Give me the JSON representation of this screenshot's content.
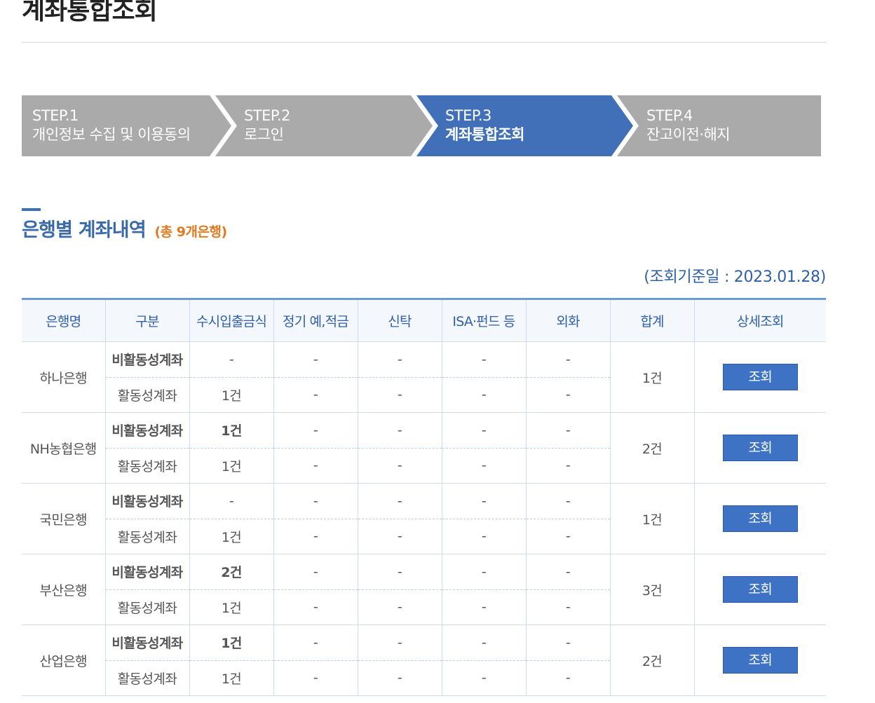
{
  "page": {
    "title": "계좌통합조회"
  },
  "steps": [
    {
      "num": "STEP.1",
      "name": "개인정보 수집 및 이용동의",
      "active": false
    },
    {
      "num": "STEP.2",
      "name": "로그인",
      "active": false
    },
    {
      "num": "STEP.3",
      "name": "계좌통합조회",
      "active": true
    },
    {
      "num": "STEP.4",
      "name": "잔고이전·해지",
      "active": false
    }
  ],
  "colors": {
    "step_inactive": "#aaaaaa",
    "step_active": "#4170b9",
    "accent": "#2e6bc7",
    "count_orange": "#e07b22"
  },
  "section": {
    "title": "은행별 계좌내역",
    "count": "(총 9개은행)",
    "ref_date": "(조회기준일 : 2023.01.28)"
  },
  "table": {
    "headers": [
      "은행명",
      "구분",
      "수시입출금식",
      "정기 예,적금",
      "신탁",
      "ISA·펀드 등",
      "외화",
      "합계",
      "상세조회"
    ],
    "view_label": "조회",
    "banks": [
      {
        "name": "하나은행",
        "total": "1건",
        "rows": [
          {
            "type": "비활동성계좌",
            "cells": [
              "-",
              "-",
              "-",
              "-",
              "-"
            ]
          },
          {
            "type": "활동성계좌",
            "cells": [
              "1건",
              "-",
              "-",
              "-",
              "-"
            ]
          }
        ]
      },
      {
        "name": "NH농협은행",
        "total": "2건",
        "rows": [
          {
            "type": "비활동성계좌",
            "cells": [
              "1건",
              "-",
              "-",
              "-",
              "-"
            ]
          },
          {
            "type": "활동성계좌",
            "cells": [
              "1건",
              "-",
              "-",
              "-",
              "-"
            ]
          }
        ]
      },
      {
        "name": "국민은행",
        "total": "1건",
        "rows": [
          {
            "type": "비활동성계좌",
            "cells": [
              "-",
              "-",
              "-",
              "-",
              "-"
            ]
          },
          {
            "type": "활동성계좌",
            "cells": [
              "1건",
              "-",
              "-",
              "-",
              "-"
            ]
          }
        ]
      },
      {
        "name": "부산은행",
        "total": "3건",
        "rows": [
          {
            "type": "비활동성계좌",
            "cells": [
              "2건",
              "-",
              "-",
              "-",
              "-"
            ]
          },
          {
            "type": "활동성계좌",
            "cells": [
              "1건",
              "-",
              "-",
              "-",
              "-"
            ]
          }
        ]
      },
      {
        "name": "산업은행",
        "total": "2건",
        "rows": [
          {
            "type": "비활동성계좌",
            "cells": [
              "1건",
              "-",
              "-",
              "-",
              "-"
            ]
          },
          {
            "type": "활동성계좌",
            "cells": [
              "1건",
              "-",
              "-",
              "-",
              "-"
            ]
          }
        ]
      }
    ]
  }
}
